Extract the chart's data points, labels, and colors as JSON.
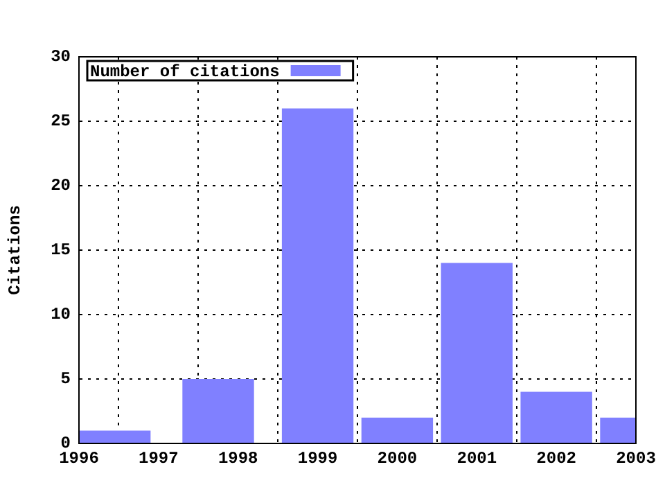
{
  "chart_data": {
    "type": "bar",
    "ylabel": "Citations",
    "x": [
      1996.45,
      1997.75,
      1999,
      2000,
      2001,
      2002,
      2003
    ],
    "series": [
      {
        "name": "Number of citations",
        "color": "#8080ff",
        "values": [
          1,
          5,
          26,
          2,
          14,
          4,
          2
        ]
      }
    ],
    "xlim": [
      1996,
      2003
    ],
    "xticks": [
      1996,
      1997,
      1998,
      1999,
      2000,
      2001,
      2002,
      2003
    ],
    "ylim": [
      0,
      30
    ],
    "yticks": [
      0,
      5,
      10,
      15,
      20,
      25,
      30
    ],
    "grid": true,
    "legend": "top left"
  }
}
